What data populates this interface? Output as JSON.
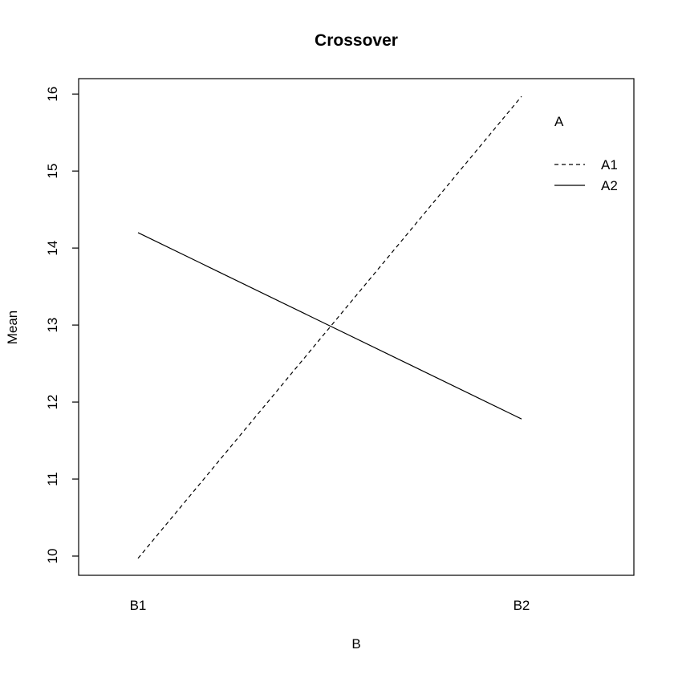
{
  "chart_data": {
    "type": "line",
    "title": "Crossover",
    "xlabel": "B",
    "ylabel": "Mean",
    "categories": [
      "B1",
      "B2"
    ],
    "ylim": [
      9.75,
      16.2
    ],
    "yticks": [
      10,
      11,
      12,
      13,
      14,
      15,
      16
    ],
    "grid": false,
    "legend": {
      "title": "A",
      "placement": "top-right"
    },
    "series": [
      {
        "name": "A1",
        "values": [
          9.97,
          15.97
        ],
        "line_style": "dashed",
        "color": "#000000"
      },
      {
        "name": "A2",
        "values": [
          14.2,
          11.78
        ],
        "line_style": "solid",
        "color": "#000000"
      }
    ]
  }
}
